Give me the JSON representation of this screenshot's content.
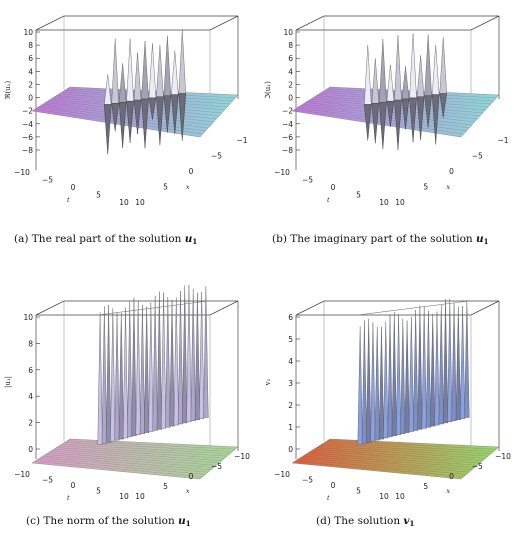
{
  "figure": {
    "panels": [
      {
        "id": "a",
        "caption_prefix": "(a)",
        "caption_text": "The real part of the solution",
        "caption_symbol": "u",
        "caption_subscript": "1",
        "z_label": "ℜ(u₁)",
        "x_label": "x",
        "t_label": "t",
        "z_ticks": [
          "10",
          "8",
          "6",
          "4",
          "2",
          "0",
          "−2",
          "−4",
          "−6",
          "−8"
        ],
        "t_ticks": [
          "−10",
          "−5",
          "0",
          "5",
          "10"
        ],
        "x_ticks": [
          "10",
          "5",
          "0",
          "−5",
          "−1"
        ],
        "colors": {
          "near": "#8fd8d8",
          "far": "#c07ad8",
          "peak": "#ececf7"
        }
      },
      {
        "id": "b",
        "caption_prefix": "(b)",
        "caption_text": "The imaginary part of the solution",
        "caption_symbol": "u",
        "caption_subscript": "1",
        "z_label": "ℑ(u₁)",
        "x_label": "x",
        "t_label": "t",
        "z_ticks": [
          "10",
          "8",
          "6",
          "4",
          "2",
          "0",
          "−2",
          "−4",
          "−6",
          "−8"
        ],
        "t_ticks": [
          "−10",
          "−5",
          "0",
          "5",
          "10"
        ],
        "x_ticks": [
          "10",
          "5",
          "0",
          "−5",
          "−1"
        ],
        "colors": {
          "near": "#8fd8d8",
          "far": "#c07ad8",
          "peak": "#ececf7"
        }
      },
      {
        "id": "c",
        "caption_prefix": "(c)",
        "caption_text": "The norm of the solution",
        "caption_symbol": "u",
        "caption_subscript": "1",
        "z_label": "|u₁|",
        "x_label": "x",
        "t_label": "t",
        "z_ticks": [
          "10",
          "8",
          "6",
          "4",
          "2",
          "0"
        ],
        "t_ticks": [
          "−10",
          "−5",
          "0",
          "5",
          "10"
        ],
        "x_ticks": [
          "10",
          "5",
          "0",
          "−5",
          "−10"
        ],
        "colors": {
          "near": "#a8d898",
          "far": "#d8a0c8",
          "peak": "#c8c0e8"
        }
      },
      {
        "id": "d",
        "caption_prefix": "(d)",
        "caption_text": "The solution",
        "caption_symbol": "v",
        "caption_subscript": "1",
        "z_label": "v₁",
        "x_label": "x",
        "t_label": "t",
        "z_ticks": [
          "6",
          "5",
          "4",
          "3",
          "2",
          "1",
          "0"
        ],
        "t_ticks": [
          "−10",
          "−5",
          "0",
          "5",
          "10"
        ],
        "x_ticks": [
          "10",
          "5",
          "0",
          "−5",
          "−10"
        ],
        "colors": {
          "near": "#98d870",
          "far": "#e06040",
          "peak": "#8aa0e0"
        }
      }
    ]
  }
}
